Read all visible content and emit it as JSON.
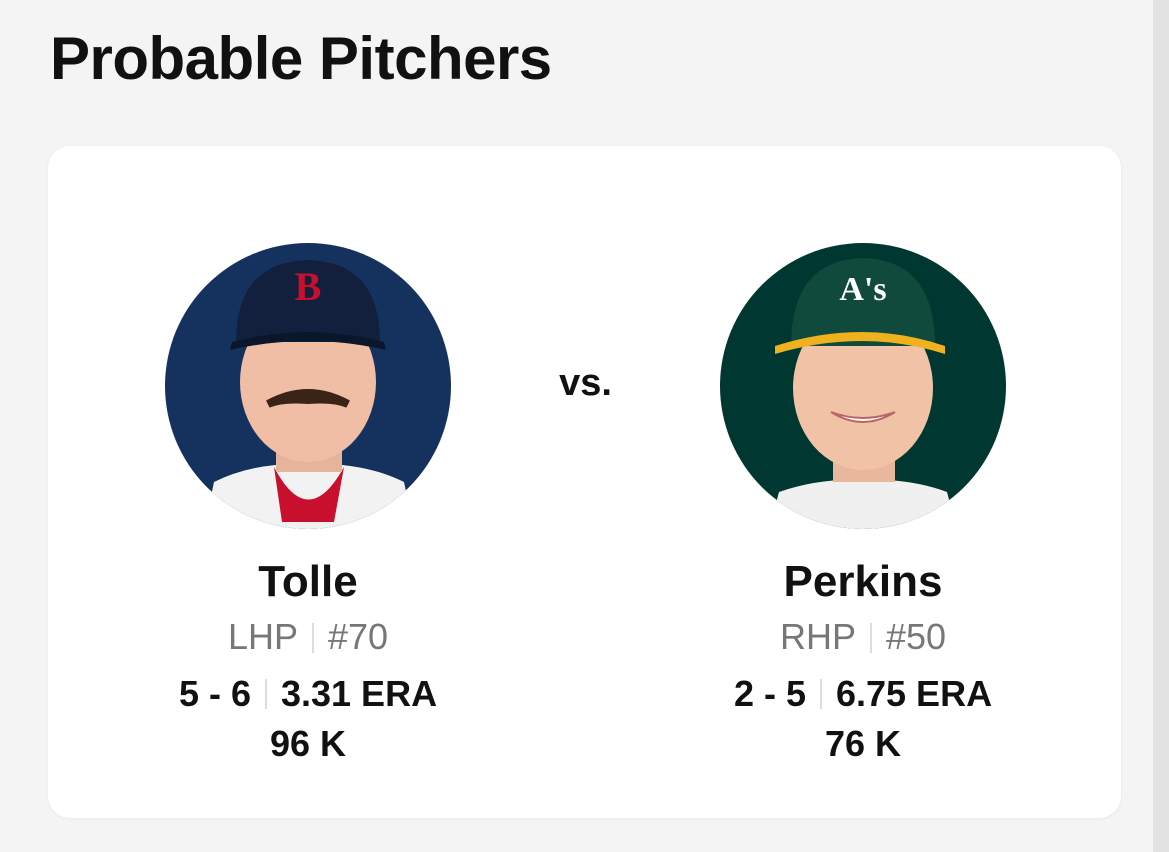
{
  "header": {
    "title": "Probable Pitchers"
  },
  "matchup": {
    "separator": "vs.",
    "pitchers": [
      {
        "name": "Tolle",
        "position": "LHP",
        "number": "#70",
        "record": "5 - 6",
        "era": "3.31 ERA",
        "strikeouts": "96 K"
      },
      {
        "name": "Perkins",
        "position": "RHP",
        "number": "#50",
        "record": "2 - 5",
        "era": "6.75 ERA",
        "strikeouts": "76 K"
      }
    ]
  }
}
